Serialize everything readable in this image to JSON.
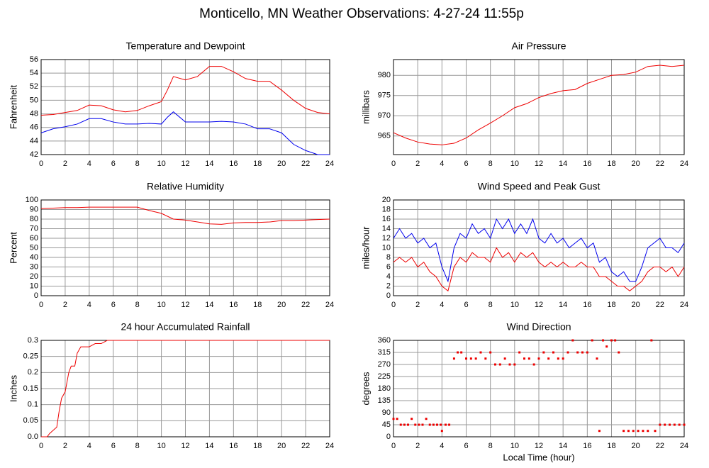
{
  "title": "Monticello, MN Weather Observations: 4-27-24 11:55p",
  "chart_data": [
    {
      "type": "line",
      "title": "Temperature and Dewpoint",
      "y_label": "Fahrenheit",
      "x": [
        0,
        1,
        2,
        3,
        4,
        5,
        6,
        7,
        8,
        9,
        10,
        10.5,
        11,
        12,
        13,
        14,
        15,
        16,
        17,
        18,
        19,
        20,
        21,
        22,
        23,
        24
      ],
      "series": [
        {
          "color": "#ee0000",
          "values": [
            47.8,
            47.9,
            48.2,
            48.5,
            49.3,
            49.2,
            48.6,
            48.3,
            48.5,
            49.2,
            49.8,
            51.5,
            53.5,
            53,
            53.5,
            55,
            55,
            54.2,
            53.2,
            52.8,
            52.8,
            51.5,
            50,
            48.8,
            48.2,
            48
          ]
        },
        {
          "color": "#0000ee",
          "values": [
            45.2,
            45.8,
            46.1,
            46.5,
            47.3,
            47.3,
            46.8,
            46.5,
            46.5,
            46.6,
            46.5,
            47.5,
            48.3,
            46.8,
            46.8,
            46.8,
            46.9,
            46.8,
            46.5,
            45.8,
            45.8,
            45.2,
            43.5,
            42.6,
            42,
            42
          ]
        }
      ],
      "xlim": [
        0,
        24
      ],
      "xticks": [
        0,
        2,
        4,
        6,
        8,
        10,
        12,
        14,
        16,
        18,
        20,
        22,
        24
      ],
      "ylim": [
        42,
        56
      ],
      "yticks": [
        42,
        44,
        46,
        48,
        50,
        52,
        54,
        56
      ],
      "grid": true
    },
    {
      "type": "line",
      "title": "Air Pressure",
      "y_label": "millibars",
      "x": [
        0,
        1,
        2,
        3,
        4,
        5,
        6,
        7,
        8,
        9,
        10,
        11,
        12,
        13,
        14,
        15,
        16,
        17,
        18,
        19,
        20,
        21,
        22,
        23,
        24
      ],
      "series": [
        {
          "color": "#ee0000",
          "values": [
            965.8,
            964.5,
            963.5,
            963,
            962.8,
            963.2,
            964.5,
            966.5,
            968.2,
            970,
            972,
            973,
            974.5,
            975.5,
            976.2,
            976.5,
            978,
            979,
            980,
            980.2,
            980.8,
            982.2,
            982.5,
            982.2,
            982.5
          ]
        }
      ],
      "xlim": [
        0,
        24
      ],
      "xticks": [
        0,
        2,
        4,
        6,
        8,
        10,
        12,
        14,
        16,
        18,
        20,
        22,
        24
      ],
      "ylim": [
        960.4,
        983.9
      ],
      "yticks": [
        965,
        970,
        975,
        980
      ],
      "grid": true
    },
    {
      "type": "line",
      "title": "Relative Humidity",
      "y_label": "Percent",
      "x": [
        0,
        1,
        2,
        3,
        4,
        5,
        6,
        7,
        8,
        9,
        10,
        11,
        12,
        13,
        14,
        15,
        16,
        17,
        18,
        19,
        20,
        21,
        22,
        23,
        24
      ],
      "series": [
        {
          "color": "#ee0000",
          "values": [
            91,
            91.5,
            92,
            92,
            92.5,
            92.5,
            92.5,
            92.5,
            92.5,
            89,
            86,
            80,
            79,
            77,
            75,
            74.5,
            76,
            76.5,
            76.5,
            77,
            78.5,
            78.5,
            79,
            79.5,
            80
          ]
        }
      ],
      "xlim": [
        0,
        24
      ],
      "xticks": [
        0,
        2,
        4,
        6,
        8,
        10,
        12,
        14,
        16,
        18,
        20,
        22,
        24
      ],
      "ylim": [
        0,
        100
      ],
      "yticks": [
        0,
        10,
        20,
        30,
        40,
        50,
        60,
        70,
        80,
        90,
        100
      ],
      "grid": true
    },
    {
      "type": "line",
      "title": "Wind Speed and Peak Gust",
      "y_label": "miles/hour",
      "x": [
        0,
        0.5,
        1,
        1.5,
        2,
        2.5,
        3,
        3.5,
        4,
        4.5,
        5,
        5.5,
        6,
        6.5,
        7,
        7.5,
        8,
        8.5,
        9,
        9.5,
        10,
        10.5,
        11,
        11.5,
        12,
        12.5,
        13,
        13.5,
        14,
        14.5,
        15,
        15.5,
        16,
        16.5,
        17,
        17.5,
        18,
        18.5,
        19,
        19.5,
        20,
        20.5,
        21,
        21.5,
        22,
        22.5,
        23,
        23.5,
        24
      ],
      "series": [
        {
          "color": "#0000ee",
          "values": [
            12,
            14,
            12,
            13,
            11,
            12,
            10,
            11,
            6,
            3,
            10,
            13,
            12,
            15,
            13,
            14,
            12,
            16,
            14,
            16,
            13,
            15,
            13,
            16,
            12,
            11,
            13,
            11,
            12,
            10,
            11,
            12,
            10,
            11,
            7,
            8,
            5,
            4,
            5,
            3,
            3,
            6,
            10,
            11,
            12,
            10,
            10,
            9,
            11
          ]
        },
        {
          "color": "#ee0000",
          "values": [
            7,
            8,
            7,
            8,
            6,
            7,
            5,
            4,
            2,
            1,
            6,
            8,
            7,
            9,
            8,
            8,
            7,
            10,
            8,
            9,
            7,
            9,
            8,
            9,
            7,
            6,
            7,
            6,
            7,
            6,
            6,
            7,
            6,
            6,
            4,
            4,
            3,
            2,
            2,
            1,
            2,
            3,
            5,
            6,
            6,
            5,
            6,
            4,
            6
          ]
        }
      ],
      "xlim": [
        0,
        24
      ],
      "xticks": [
        0,
        2,
        4,
        6,
        8,
        10,
        12,
        14,
        16,
        18,
        20,
        22,
        24
      ],
      "ylim": [
        0,
        20
      ],
      "yticks": [
        0,
        2,
        4,
        6,
        8,
        10,
        12,
        14,
        16,
        18,
        20
      ],
      "grid": true
    },
    {
      "type": "line",
      "title": "24 hour Accumulated Rainfall",
      "y_label": "Inches",
      "x": [
        0,
        0.5,
        0.7,
        1,
        1.3,
        1.5,
        1.7,
        2,
        2.3,
        2.5,
        2.8,
        3,
        3.3,
        4,
        4.5,
        5,
        5.5,
        6,
        24
      ],
      "series": [
        {
          "color": "#ee0000",
          "values": [
            0,
            0,
            0.01,
            0.02,
            0.03,
            0.08,
            0.12,
            0.14,
            0.2,
            0.22,
            0.22,
            0.26,
            0.28,
            0.28,
            0.29,
            0.29,
            0.3,
            0.3,
            0.3
          ]
        }
      ],
      "xlim": [
        0,
        24
      ],
      "xticks": [
        0,
        2,
        4,
        6,
        8,
        10,
        12,
        14,
        16,
        18,
        20,
        22,
        24
      ],
      "ylim": [
        0,
        0.3
      ],
      "yticks": [
        {
          "value": 0,
          "label": "0.0"
        },
        0.05,
        0.1,
        0.15,
        0.2,
        0.25,
        0.3
      ],
      "grid": true
    },
    {
      "type": "scatter",
      "title": "Wind Direction",
      "y_label": "degrees",
      "x_label": "Local Time (hour)",
      "x": [
        0,
        0.3,
        0.6,
        0.9,
        1.2,
        1.5,
        1.8,
        2.1,
        2.4,
        2.7,
        3,
        3.3,
        3.6,
        3.9,
        4,
        4.3,
        4.6,
        5,
        5.3,
        5.6,
        6,
        6.4,
        6.8,
        7.2,
        7.6,
        8,
        8.4,
        8.8,
        9.2,
        9.6,
        10,
        10.4,
        10.8,
        11.2,
        11.6,
        12,
        12.4,
        12.8,
        13.2,
        13.6,
        14,
        14.4,
        14.8,
        15.2,
        15.6,
        16,
        16.4,
        16.8,
        17,
        17.3,
        17.6,
        18,
        18.3,
        18.6,
        19,
        19.4,
        19.8,
        20.2,
        20.6,
        21,
        21.3,
        21.6,
        22,
        22.4,
        22.8,
        23.2,
        23.6,
        24
      ],
      "values": [
        67,
        67,
        45,
        45,
        45,
        67,
        45,
        45,
        45,
        67,
        45,
        45,
        45,
        45,
        22,
        45,
        45,
        292,
        315,
        315,
        292,
        292,
        292,
        315,
        292,
        315,
        270,
        270,
        292,
        270,
        270,
        315,
        292,
        292,
        270,
        292,
        315,
        292,
        315,
        292,
        292,
        315,
        360,
        315,
        315,
        315,
        360,
        292,
        22,
        360,
        337,
        360,
        360,
        315,
        22,
        22,
        22,
        22,
        22,
        22,
        360,
        22,
        45,
        45,
        45,
        45,
        45,
        45
      ],
      "color": "#ee0000",
      "xlim": [
        0,
        24
      ],
      "xticks": [
        0,
        2,
        4,
        6,
        8,
        10,
        12,
        14,
        16,
        18,
        20,
        22,
        24
      ],
      "ylim": [
        0,
        360
      ],
      "yticks": [
        0,
        45,
        90,
        135,
        180,
        225,
        270,
        315,
        360
      ],
      "grid": true
    }
  ]
}
